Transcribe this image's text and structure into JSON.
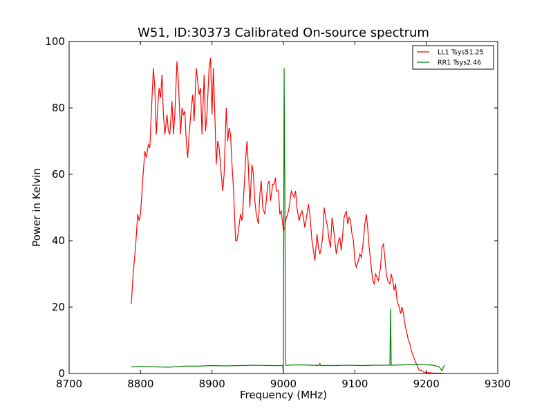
{
  "chart_data": {
    "type": "line",
    "title": "W51, ID:30373 Calibrated On-source spectrum",
    "xlabel": "Frequency (MHz)",
    "ylabel": "Power in Kelvin",
    "xlim": [
      8700,
      9300
    ],
    "ylim": [
      0,
      100
    ],
    "xticks": [
      8700,
      8800,
      8900,
      9000,
      9100,
      9200,
      9300
    ],
    "yticks": [
      0,
      20,
      40,
      60,
      80,
      100
    ],
    "grid": false,
    "legend_position": "top-right",
    "series": [
      {
        "name": "LL1 Tsys51.25",
        "color": "#ff0000",
        "points": [
          [
            8787,
            21
          ],
          [
            8790,
            31
          ],
          [
            8793,
            38
          ],
          [
            8796,
            48
          ],
          [
            8798,
            46
          ],
          [
            8800,
            48
          ],
          [
            8803,
            58
          ],
          [
            8806,
            67
          ],
          [
            8808,
            65
          ],
          [
            8811,
            69
          ],
          [
            8813,
            68
          ],
          [
            8815,
            78
          ],
          [
            8818,
            92
          ],
          [
            8820,
            86
          ],
          [
            8822,
            72
          ],
          [
            8824,
            80
          ],
          [
            8826,
            86
          ],
          [
            8828,
            83
          ],
          [
            8830,
            90
          ],
          [
            8832,
            78
          ],
          [
            8834,
            72
          ],
          [
            8837,
            78
          ],
          [
            8839,
            73
          ],
          [
            8841,
            72
          ],
          [
            8844,
            82
          ],
          [
            8846,
            72
          ],
          [
            8848,
            78
          ],
          [
            8851,
            94
          ],
          [
            8853,
            88
          ],
          [
            8856,
            72
          ],
          [
            8858,
            80
          ],
          [
            8860,
            78
          ],
          [
            8862,
            79
          ],
          [
            8864,
            70
          ],
          [
            8866,
            65
          ],
          [
            8868,
            72
          ],
          [
            8871,
            80
          ],
          [
            8873,
            84
          ],
          [
            8875,
            76
          ],
          [
            8878,
            92
          ],
          [
            8880,
            88
          ],
          [
            8882,
            84
          ],
          [
            8884,
            86
          ],
          [
            8886,
            72
          ],
          [
            8889,
            90
          ],
          [
            8891,
            73
          ],
          [
            8893,
            78
          ],
          [
            8896,
            92
          ],
          [
            8898,
            95
          ],
          [
            8900,
            78
          ],
          [
            8902,
            92
          ],
          [
            8904,
            78
          ],
          [
            8906,
            63
          ],
          [
            8908,
            70
          ],
          [
            8910,
            68
          ],
          [
            8913,
            60
          ],
          [
            8915,
            55
          ],
          [
            8917,
            60
          ],
          [
            8920,
            80
          ],
          [
            8922,
            70
          ],
          [
            8924,
            74
          ],
          [
            8926,
            72
          ],
          [
            8928,
            63
          ],
          [
            8930,
            56
          ],
          [
            8933,
            40
          ],
          [
            8935,
            40
          ],
          [
            8937,
            43
          ],
          [
            8940,
            48
          ],
          [
            8942,
            46
          ],
          [
            8944,
            52
          ],
          [
            8947,
            64
          ],
          [
            8949,
            70
          ],
          [
            8951,
            62
          ],
          [
            8953,
            50
          ],
          [
            8956,
            63
          ],
          [
            8958,
            60
          ],
          [
            8960,
            52
          ],
          [
            8962,
            48
          ],
          [
            8965,
            45
          ],
          [
            8967,
            54
          ],
          [
            8969,
            58
          ],
          [
            8971,
            50
          ],
          [
            8974,
            48
          ],
          [
            8976,
            52
          ],
          [
            8978,
            57
          ],
          [
            8980,
            58
          ],
          [
            8982,
            52
          ],
          [
            8985,
            57
          ],
          [
            8987,
            57
          ],
          [
            8989,
            59
          ],
          [
            8990,
            55
          ],
          [
            8993,
            55
          ],
          [
            8995,
            48
          ],
          [
            8997,
            49
          ],
          [
            9000,
            43
          ],
          [
            9002,
            44
          ],
          [
            9004,
            47
          ],
          [
            9006,
            48
          ],
          [
            9008,
            50
          ],
          [
            9011,
            55
          ],
          [
            9013,
            54
          ],
          [
            9015,
            53
          ],
          [
            9017,
            55
          ],
          [
            9019,
            50
          ],
          [
            9022,
            46
          ],
          [
            9024,
            48
          ],
          [
            9026,
            49
          ],
          [
            9028,
            47
          ],
          [
            9030,
            44
          ],
          [
            9033,
            48
          ],
          [
            9035,
            51
          ],
          [
            9037,
            48
          ],
          [
            9040,
            40
          ],
          [
            9042,
            37
          ],
          [
            9044,
            34
          ],
          [
            9047,
            42
          ],
          [
            9049,
            38
          ],
          [
            9051,
            36
          ],
          [
            9053,
            38
          ],
          [
            9055,
            41
          ],
          [
            9057,
            50
          ],
          [
            9059,
            47
          ],
          [
            9062,
            44
          ],
          [
            9064,
            40
          ],
          [
            9066,
            38
          ],
          [
            9068,
            47
          ],
          [
            9070,
            44
          ],
          [
            9072,
            40
          ],
          [
            9074,
            36
          ],
          [
            9077,
            40
          ],
          [
            9079,
            41
          ],
          [
            9081,
            37
          ],
          [
            9083,
            42
          ],
          [
            9085,
            47
          ],
          [
            9088,
            49
          ],
          [
            9090,
            45
          ],
          [
            9092,
            47
          ],
          [
            9094,
            46
          ],
          [
            9096,
            42
          ],
          [
            9098,
            40
          ],
          [
            9100,
            34
          ],
          [
            9102,
            32
          ],
          [
            9105,
            34
          ],
          [
            9107,
            36
          ],
          [
            9109,
            35
          ],
          [
            9111,
            38
          ],
          [
            9114,
            45
          ],
          [
            9116,
            48
          ],
          [
            9118,
            44
          ],
          [
            9120,
            38
          ],
          [
            9123,
            32
          ],
          [
            9125,
            28
          ],
          [
            9127,
            27
          ],
          [
            9129,
            30
          ],
          [
            9131,
            29
          ],
          [
            9133,
            28
          ],
          [
            9136,
            32
          ],
          [
            9138,
            38
          ],
          [
            9140,
            39
          ],
          [
            9142,
            35
          ],
          [
            9144,
            30
          ],
          [
            9146,
            28
          ],
          [
            9149,
            27
          ],
          [
            9151,
            30
          ],
          [
            9153,
            28
          ],
          [
            9155,
            25
          ],
          [
            9157,
            27
          ],
          [
            9159,
            22
          ],
          [
            9162,
            20
          ],
          [
            9164,
            18
          ],
          [
            9166,
            20
          ],
          [
            9168,
            18
          ],
          [
            9170,
            15
          ],
          [
            9173,
            12
          ],
          [
            9175,
            10
          ],
          [
            9177,
            9
          ],
          [
            9179,
            7
          ],
          [
            9182,
            5
          ],
          [
            9184,
            4
          ],
          [
            9186,
            3
          ],
          [
            9188,
            2
          ],
          [
            9190,
            1
          ],
          [
            9193,
            1
          ],
          [
            9195,
            0.5
          ],
          [
            9200,
            0.3
          ],
          [
            9205,
            0.2
          ],
          [
            9210,
            0.1
          ],
          [
            9220,
            0.1
          ],
          [
            9226,
            0
          ]
        ]
      },
      {
        "name": "RR1 Tsys2.46",
        "color": "#008000",
        "points": [
          [
            8787,
            2.0
          ],
          [
            8800,
            2.1
          ],
          [
            8820,
            2.0
          ],
          [
            8840,
            1.9
          ],
          [
            8860,
            2.2
          ],
          [
            8880,
            2.2
          ],
          [
            8900,
            2.4
          ],
          [
            8920,
            2.3
          ],
          [
            8940,
            2.4
          ],
          [
            8960,
            2.5
          ],
          [
            8980,
            2.4
          ],
          [
            8999,
            2.4
          ],
          [
            9000,
            0.3
          ],
          [
            9001,
            92.0
          ],
          [
            9002,
            55.0
          ],
          [
            9003,
            2.5
          ],
          [
            9020,
            2.6
          ],
          [
            9040,
            2.5
          ],
          [
            9050,
            2.4
          ],
          [
            9051,
            3.0
          ],
          [
            9052,
            2.4
          ],
          [
            9070,
            2.4
          ],
          [
            9090,
            2.5
          ],
          [
            9110,
            2.4
          ],
          [
            9130,
            2.5
          ],
          [
            9149,
            2.5
          ],
          [
            9150,
            19.5
          ],
          [
            9151,
            2.5
          ],
          [
            9170,
            2.6
          ],
          [
            9190,
            2.8
          ],
          [
            9200,
            2.6
          ],
          [
            9210,
            2.5
          ],
          [
            9215,
            2.2
          ],
          [
            9218,
            2.0
          ],
          [
            9220,
            1.5
          ],
          [
            9222,
            0.8
          ],
          [
            9224,
            2.0
          ],
          [
            9226,
            2.5
          ]
        ]
      }
    ]
  }
}
